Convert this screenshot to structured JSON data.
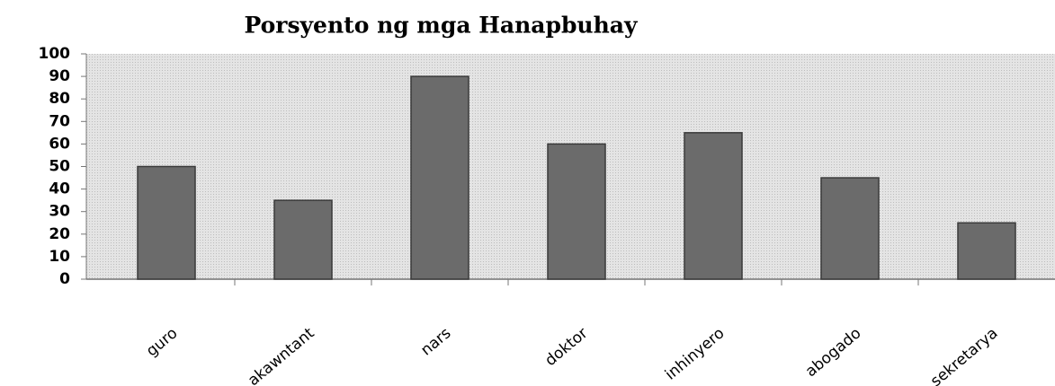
{
  "chart_data": {
    "type": "bar",
    "title": "Porsyento ng mga Hanapbuhay",
    "categories": [
      "guro",
      "akawntant",
      "nars",
      "doktor",
      "inhinyero",
      "abogado",
      "sekretarya"
    ],
    "values": [
      50,
      35,
      90,
      60,
      65,
      45,
      25
    ],
    "color": "#6b6b6b",
    "ylim": [
      0,
      100
    ],
    "yticks": [
      0,
      10,
      20,
      30,
      40,
      50,
      60,
      70,
      80,
      90,
      100
    ],
    "grid": false
  }
}
